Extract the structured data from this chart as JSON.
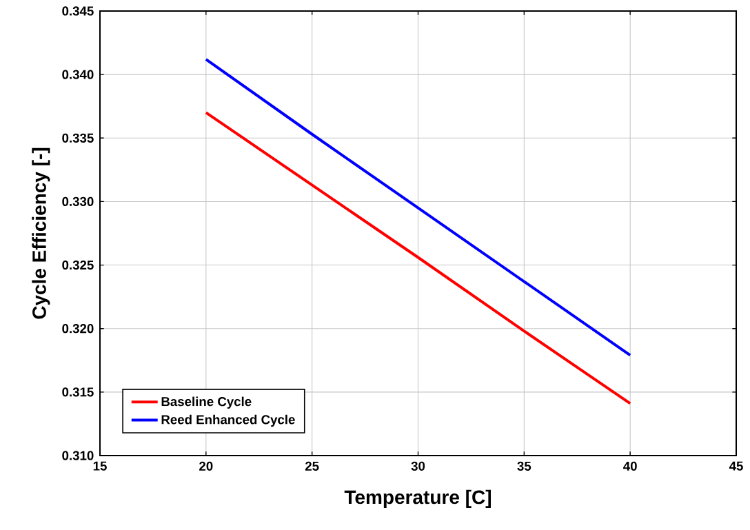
{
  "chart_data": {
    "type": "line",
    "xlabel": "Temperature [C]",
    "ylabel": "Cycle Efficiency [-]",
    "x": [
      20,
      25,
      30,
      35,
      40
    ],
    "series": [
      {
        "name": "Baseline Cycle",
        "color": "#ff0000",
        "values": [
          0.337,
          0.3313,
          0.3256,
          0.3198,
          0.3141
        ]
      },
      {
        "name": "Reed Enhanced Cycle",
        "color": "#0000ff",
        "values": [
          0.3412,
          0.3353,
          0.3295,
          0.3237,
          0.3179
        ]
      }
    ],
    "xlim": [
      15,
      45
    ],
    "ylim": [
      0.31,
      0.345
    ],
    "xticks": [
      15,
      20,
      25,
      30,
      35,
      40,
      45
    ],
    "yticks": [
      {
        "value": 0.31,
        "label": "0.310"
      },
      {
        "value": 0.315,
        "label": "0.315"
      },
      {
        "value": 0.32,
        "label": "0.320"
      },
      {
        "value": 0.325,
        "label": "0.325"
      },
      {
        "value": 0.33,
        "label": "0.330"
      },
      {
        "value": 0.335,
        "label": "0.335"
      },
      {
        "value": 0.34,
        "label": "0.340"
      },
      {
        "value": 0.345,
        "label": "0.345"
      }
    ],
    "grid": true,
    "legend": "bottom left",
    "marker": "none",
    "line_style": "solid"
  }
}
